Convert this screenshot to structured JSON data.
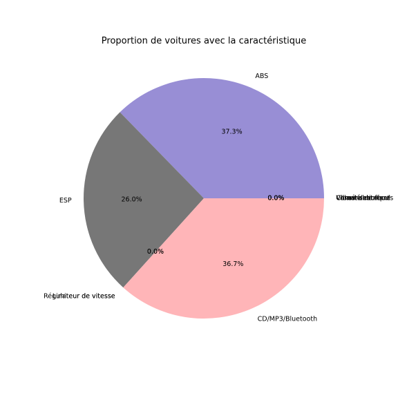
{
  "chart_data": {
    "type": "pie",
    "title": "Proportion de voitures avec la caractéristique",
    "slices": [
      {
        "label": "ABS",
        "value": 37.3,
        "pct_text": "37.3%",
        "color": "#988ED5"
      },
      {
        "label": "ESP",
        "value": 26.0,
        "pct_text": "26.0%",
        "color": "#777777"
      },
      {
        "label": "Régulateur de vitesse",
        "value": 0.0,
        "pct_text": "0.0%",
        "color": "#FBC15E"
      },
      {
        "label": "Limiteur de vitesse",
        "value": 0.0,
        "pct_text": "0.0%",
        "color": "#8EBA42"
      },
      {
        "label": "CD/MP3/Bluetooth",
        "value": 36.7,
        "pct_text": "36.7%",
        "color": "#FFB5B8"
      },
      {
        "label": "Climatisation",
        "value": 0.0,
        "pct_text": "0.0%",
        "color": "#E24A33"
      },
      {
        "label": "Vitres électriques",
        "value": 0.0,
        "pct_text": "0.0%",
        "color": "#348ABD"
      },
      {
        "label": "Caméra de recul",
        "value": 0.0,
        "pct_text": "0.0%",
        "color": "#988ED5"
      },
      {
        "label": "Volant chauffant",
        "value": 0.0,
        "pct_text": "0.0%",
        "color": "#777777"
      }
    ],
    "start_angle": 0,
    "direction": "counterclockwise"
  }
}
